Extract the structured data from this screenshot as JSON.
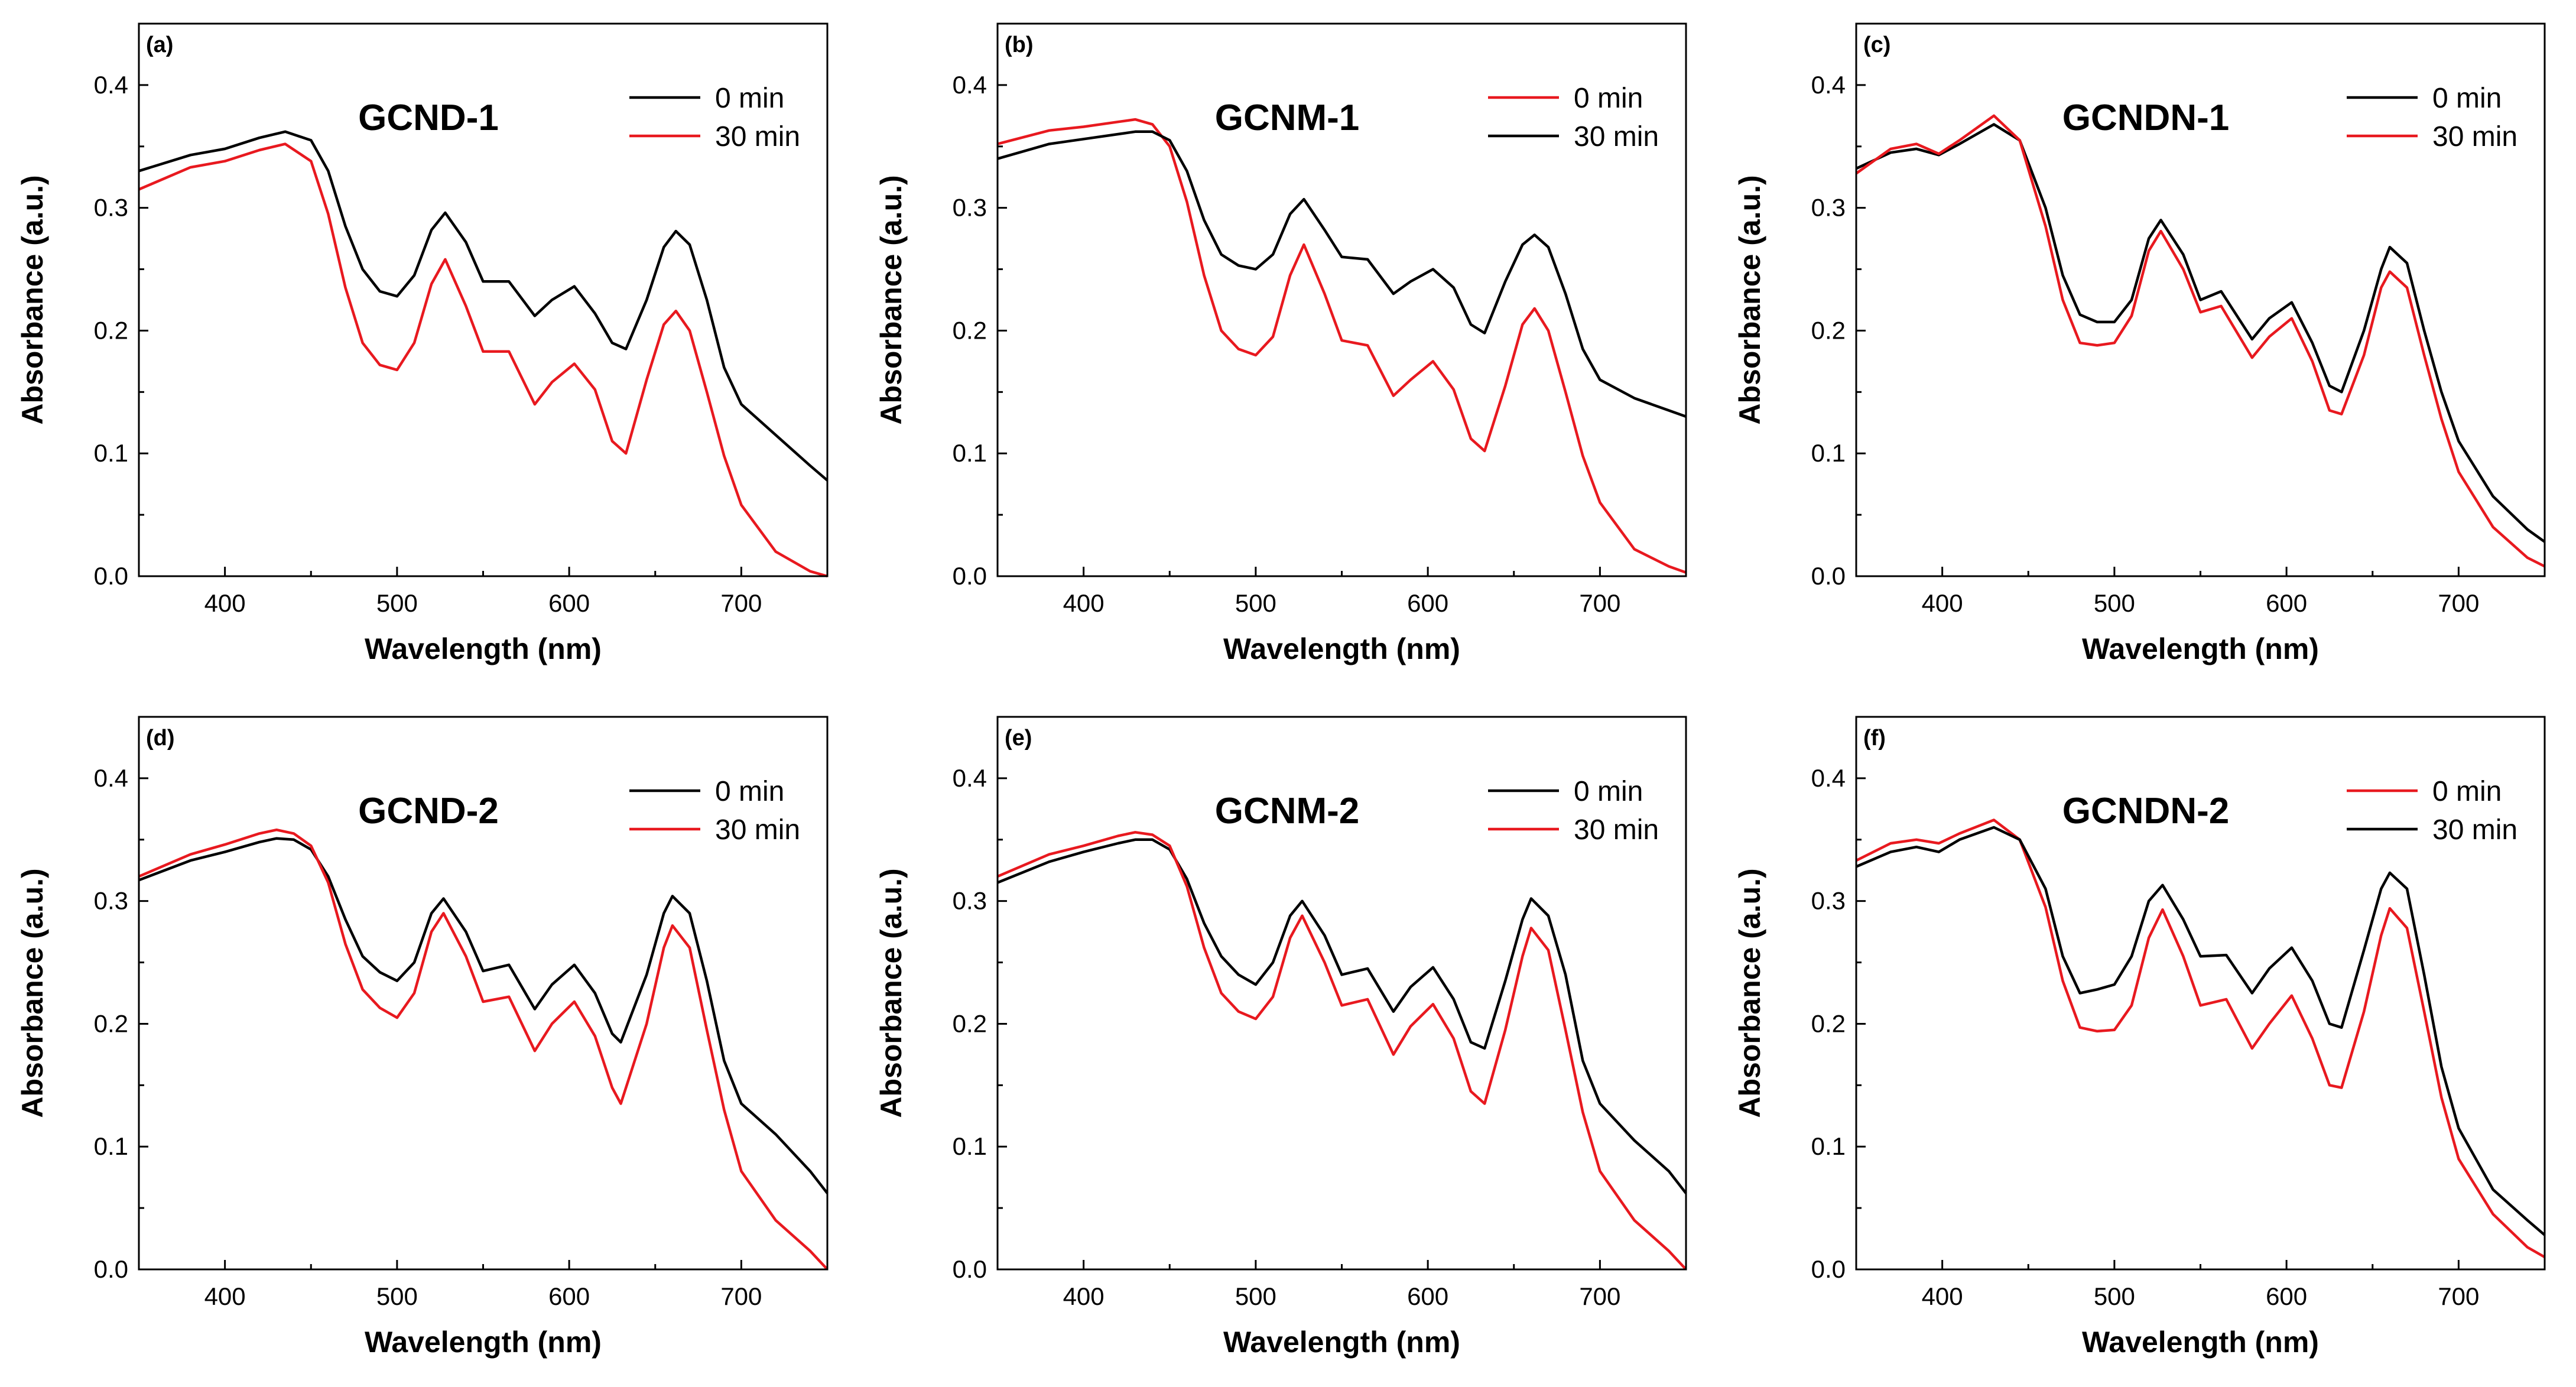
{
  "colors": {
    "black_series": "#000000",
    "red_series": "#e8191f",
    "axes": "#000000"
  },
  "chart_data": [
    {
      "type": "line",
      "panel_label": "(a)",
      "title": "GCND-1",
      "xlabel": "Wavelength (nm)",
      "ylabel": "Absorbance (a.u.)",
      "xlim": [
        350,
        750
      ],
      "ylim": [
        0,
        0.45
      ],
      "xticks": [
        "400",
        "500",
        "600",
        "700"
      ],
      "yticks": [
        "0.0",
        "0.1",
        "0.2",
        "0.3",
        "0.4"
      ],
      "legend_position": "top-right",
      "series": [
        {
          "name": "0 min",
          "color": "black",
          "x": [
            350,
            380,
            400,
            420,
            435,
            450,
            460,
            470,
            480,
            490,
            500,
            510,
            520,
            528,
            540,
            550,
            565,
            580,
            590,
            603,
            615,
            625,
            633,
            645,
            655,
            662,
            670,
            680,
            690,
            700,
            720,
            740,
            750
          ],
          "y": [
            0.33,
            0.343,
            0.348,
            0.357,
            0.362,
            0.355,
            0.33,
            0.285,
            0.25,
            0.232,
            0.228,
            0.245,
            0.282,
            0.296,
            0.272,
            0.24,
            0.24,
            0.212,
            0.225,
            0.236,
            0.214,
            0.19,
            0.185,
            0.225,
            0.268,
            0.281,
            0.27,
            0.225,
            0.17,
            0.14,
            0.115,
            0.09,
            0.078
          ]
        },
        {
          "name": "30 min",
          "color": "red",
          "x": [
            350,
            380,
            400,
            420,
            435,
            450,
            460,
            470,
            480,
            490,
            500,
            510,
            520,
            528,
            540,
            550,
            565,
            580,
            590,
            603,
            615,
            625,
            633,
            645,
            655,
            662,
            670,
            680,
            690,
            700,
            720,
            740,
            750
          ],
          "y": [
            0.315,
            0.333,
            0.338,
            0.347,
            0.352,
            0.338,
            0.295,
            0.235,
            0.19,
            0.172,
            0.168,
            0.19,
            0.238,
            0.258,
            0.22,
            0.183,
            0.183,
            0.14,
            0.158,
            0.173,
            0.152,
            0.11,
            0.1,
            0.16,
            0.205,
            0.216,
            0.2,
            0.15,
            0.098,
            0.058,
            0.02,
            0.004,
            0.0
          ]
        }
      ]
    },
    {
      "type": "line",
      "panel_label": "(b)",
      "title": "GCNM-1",
      "xlabel": "Wavelength (nm)",
      "ylabel": "Absorbance (a.u.)",
      "xlim": [
        350,
        750
      ],
      "ylim": [
        0,
        0.45
      ],
      "xticks": [
        "400",
        "500",
        "600",
        "700"
      ],
      "yticks": [
        "0.0",
        "0.1",
        "0.2",
        "0.3",
        "0.4"
      ],
      "legend_position": "top-right",
      "series": [
        {
          "name": "0 min",
          "color": "red",
          "x": [
            350,
            380,
            400,
            420,
            430,
            440,
            450,
            460,
            470,
            480,
            490,
            500,
            510,
            520,
            528,
            540,
            550,
            565,
            580,
            590,
            603,
            615,
            625,
            633,
            645,
            655,
            662,
            670,
            680,
            690,
            700,
            720,
            740,
            750
          ],
          "y": [
            0.352,
            0.363,
            0.366,
            0.37,
            0.372,
            0.368,
            0.35,
            0.305,
            0.245,
            0.2,
            0.185,
            0.18,
            0.195,
            0.245,
            0.27,
            0.23,
            0.192,
            0.188,
            0.147,
            0.16,
            0.175,
            0.152,
            0.112,
            0.102,
            0.155,
            0.205,
            0.218,
            0.2,
            0.15,
            0.098,
            0.06,
            0.022,
            0.008,
            0.003
          ]
        },
        {
          "name": "30 min",
          "color": "black",
          "x": [
            350,
            380,
            400,
            420,
            430,
            440,
            450,
            460,
            470,
            480,
            490,
            500,
            510,
            520,
            528,
            540,
            550,
            565,
            580,
            590,
            603,
            615,
            625,
            633,
            645,
            655,
            662,
            670,
            680,
            690,
            700,
            720,
            740,
            750
          ],
          "y": [
            0.34,
            0.352,
            0.356,
            0.36,
            0.362,
            0.362,
            0.355,
            0.33,
            0.29,
            0.262,
            0.253,
            0.25,
            0.262,
            0.295,
            0.307,
            0.282,
            0.26,
            0.258,
            0.23,
            0.24,
            0.25,
            0.235,
            0.205,
            0.198,
            0.24,
            0.27,
            0.278,
            0.268,
            0.23,
            0.185,
            0.16,
            0.145,
            0.135,
            0.13
          ]
        }
      ]
    },
    {
      "type": "line",
      "panel_label": "(c)",
      "title": "GCNDN-1",
      "xlabel": "Wavelength (nm)",
      "ylabel": "Absorbance (a.u.)",
      "xlim": [
        350,
        750
      ],
      "ylim": [
        0,
        0.45
      ],
      "xticks": [
        "400",
        "500",
        "600",
        "700"
      ],
      "yticks": [
        "0.0",
        "0.1",
        "0.2",
        "0.3",
        "0.4"
      ],
      "legend_position": "top-right",
      "series": [
        {
          "name": "0 min",
          "color": "black",
          "x": [
            350,
            370,
            385,
            398,
            410,
            430,
            445,
            460,
            470,
            480,
            490,
            500,
            510,
            520,
            527,
            540,
            550,
            562,
            580,
            590,
            603,
            615,
            625,
            632,
            645,
            655,
            660,
            670,
            680,
            690,
            700,
            720,
            740,
            750
          ],
          "y": [
            0.332,
            0.345,
            0.348,
            0.343,
            0.352,
            0.368,
            0.355,
            0.3,
            0.245,
            0.213,
            0.207,
            0.207,
            0.225,
            0.275,
            0.29,
            0.262,
            0.225,
            0.232,
            0.193,
            0.21,
            0.223,
            0.19,
            0.155,
            0.15,
            0.2,
            0.25,
            0.268,
            0.255,
            0.2,
            0.15,
            0.11,
            0.065,
            0.038,
            0.028
          ]
        },
        {
          "name": "30 min",
          "color": "red",
          "x": [
            350,
            370,
            385,
            398,
            410,
            430,
            445,
            460,
            470,
            480,
            490,
            500,
            510,
            520,
            527,
            540,
            550,
            562,
            580,
            590,
            603,
            615,
            625,
            632,
            645,
            655,
            660,
            670,
            680,
            690,
            700,
            720,
            740,
            750
          ],
          "y": [
            0.328,
            0.348,
            0.352,
            0.344,
            0.355,
            0.375,
            0.355,
            0.285,
            0.225,
            0.19,
            0.188,
            0.19,
            0.212,
            0.265,
            0.281,
            0.25,
            0.215,
            0.22,
            0.178,
            0.195,
            0.21,
            0.175,
            0.135,
            0.132,
            0.18,
            0.235,
            0.248,
            0.235,
            0.18,
            0.128,
            0.085,
            0.04,
            0.015,
            0.008
          ]
        }
      ]
    },
    {
      "type": "line",
      "panel_label": "(d)",
      "title": "GCND-2",
      "xlabel": "Wavelength (nm)",
      "ylabel": "Absorbance (a.u.)",
      "xlim": [
        350,
        750
      ],
      "ylim": [
        0,
        0.45
      ],
      "xticks": [
        "400",
        "500",
        "600",
        "700"
      ],
      "yticks": [
        "0.0",
        "0.1",
        "0.2",
        "0.3",
        "0.4"
      ],
      "legend_position": "top-right",
      "series": [
        {
          "name": "0 min",
          "color": "black",
          "x": [
            350,
            380,
            400,
            420,
            430,
            440,
            450,
            460,
            470,
            480,
            490,
            500,
            510,
            520,
            527,
            540,
            550,
            565,
            580,
            590,
            603,
            615,
            625,
            630,
            645,
            655,
            660,
            670,
            680,
            690,
            700,
            720,
            740,
            750
          ],
          "y": [
            0.317,
            0.333,
            0.34,
            0.348,
            0.351,
            0.35,
            0.342,
            0.32,
            0.285,
            0.255,
            0.242,
            0.235,
            0.25,
            0.29,
            0.302,
            0.275,
            0.243,
            0.248,
            0.212,
            0.232,
            0.248,
            0.225,
            0.192,
            0.185,
            0.24,
            0.29,
            0.304,
            0.29,
            0.235,
            0.17,
            0.135,
            0.11,
            0.08,
            0.062
          ]
        },
        {
          "name": "30 min",
          "color": "red",
          "x": [
            350,
            380,
            400,
            420,
            430,
            440,
            450,
            460,
            470,
            480,
            490,
            500,
            510,
            520,
            527,
            540,
            550,
            565,
            580,
            590,
            603,
            615,
            625,
            630,
            645,
            655,
            660,
            670,
            680,
            690,
            700,
            720,
            740,
            750
          ],
          "y": [
            0.32,
            0.338,
            0.346,
            0.355,
            0.358,
            0.355,
            0.345,
            0.315,
            0.265,
            0.228,
            0.213,
            0.205,
            0.225,
            0.275,
            0.29,
            0.255,
            0.218,
            0.222,
            0.178,
            0.2,
            0.218,
            0.19,
            0.148,
            0.135,
            0.2,
            0.262,
            0.28,
            0.262,
            0.195,
            0.13,
            0.08,
            0.04,
            0.015,
            0.0
          ]
        }
      ]
    },
    {
      "type": "line",
      "panel_label": "(e)",
      "title": "GCNM-2",
      "xlabel": "Wavelength (nm)",
      "ylabel": "Absorbance (a.u.)",
      "xlim": [
        350,
        750
      ],
      "ylim": [
        0,
        0.45
      ],
      "xticks": [
        "400",
        "500",
        "600",
        "700"
      ],
      "yticks": [
        "0.0",
        "0.1",
        "0.2",
        "0.3",
        "0.4"
      ],
      "legend_position": "top-right",
      "series": [
        {
          "name": "0 min",
          "color": "black",
          "x": [
            350,
            380,
            400,
            420,
            430,
            440,
            450,
            460,
            470,
            480,
            490,
            500,
            510,
            520,
            527,
            540,
            550,
            565,
            580,
            590,
            603,
            615,
            625,
            633,
            645,
            655,
            660,
            670,
            680,
            690,
            700,
            720,
            740,
            750
          ],
          "y": [
            0.315,
            0.332,
            0.34,
            0.347,
            0.35,
            0.35,
            0.342,
            0.318,
            0.282,
            0.255,
            0.24,
            0.232,
            0.25,
            0.288,
            0.3,
            0.272,
            0.24,
            0.245,
            0.21,
            0.23,
            0.246,
            0.22,
            0.185,
            0.18,
            0.235,
            0.285,
            0.302,
            0.288,
            0.24,
            0.17,
            0.135,
            0.105,
            0.08,
            0.062
          ]
        },
        {
          "name": "30 min",
          "color": "red",
          "x": [
            350,
            380,
            400,
            420,
            430,
            440,
            450,
            460,
            470,
            480,
            490,
            500,
            510,
            520,
            527,
            540,
            550,
            565,
            580,
            590,
            603,
            615,
            625,
            633,
            645,
            655,
            660,
            670,
            680,
            690,
            700,
            720,
            740,
            750
          ],
          "y": [
            0.32,
            0.338,
            0.345,
            0.353,
            0.356,
            0.354,
            0.345,
            0.312,
            0.262,
            0.225,
            0.21,
            0.204,
            0.222,
            0.27,
            0.288,
            0.25,
            0.215,
            0.22,
            0.175,
            0.198,
            0.216,
            0.188,
            0.145,
            0.135,
            0.195,
            0.255,
            0.278,
            0.26,
            0.195,
            0.128,
            0.08,
            0.04,
            0.015,
            0.0
          ]
        }
      ]
    },
    {
      "type": "line",
      "panel_label": "(f)",
      "title": "GCNDN-2",
      "xlabel": "Wavelength (nm)",
      "ylabel": "Absorbance (a.u.)",
      "xlim": [
        350,
        750
      ],
      "ylim": [
        0,
        0.45
      ],
      "xticks": [
        "400",
        "500",
        "600",
        "700"
      ],
      "yticks": [
        "0.0",
        "0.1",
        "0.2",
        "0.3",
        "0.4"
      ],
      "legend_position": "top-right",
      "series": [
        {
          "name": "0 min",
          "color": "red",
          "x": [
            350,
            370,
            385,
            398,
            410,
            430,
            445,
            460,
            470,
            480,
            490,
            500,
            510,
            520,
            528,
            540,
            550,
            565,
            580,
            590,
            603,
            615,
            625,
            632,
            645,
            655,
            660,
            670,
            680,
            690,
            700,
            720,
            740,
            750
          ],
          "y": [
            0.333,
            0.347,
            0.35,
            0.347,
            0.355,
            0.366,
            0.35,
            0.295,
            0.235,
            0.197,
            0.194,
            0.195,
            0.215,
            0.27,
            0.293,
            0.255,
            0.215,
            0.22,
            0.18,
            0.2,
            0.223,
            0.188,
            0.15,
            0.148,
            0.21,
            0.272,
            0.294,
            0.278,
            0.21,
            0.14,
            0.09,
            0.045,
            0.018,
            0.01
          ]
        },
        {
          "name": "30 min",
          "color": "black",
          "x": [
            350,
            370,
            385,
            398,
            410,
            430,
            445,
            460,
            470,
            480,
            490,
            500,
            510,
            520,
            528,
            540,
            550,
            565,
            580,
            590,
            603,
            615,
            625,
            632,
            645,
            655,
            660,
            670,
            680,
            690,
            700,
            720,
            740,
            750
          ],
          "y": [
            0.328,
            0.34,
            0.344,
            0.34,
            0.35,
            0.36,
            0.35,
            0.31,
            0.255,
            0.225,
            0.228,
            0.232,
            0.255,
            0.3,
            0.313,
            0.285,
            0.255,
            0.256,
            0.225,
            0.245,
            0.262,
            0.235,
            0.2,
            0.197,
            0.26,
            0.31,
            0.323,
            0.31,
            0.24,
            0.165,
            0.115,
            0.065,
            0.04,
            0.028
          ]
        }
      ]
    }
  ]
}
